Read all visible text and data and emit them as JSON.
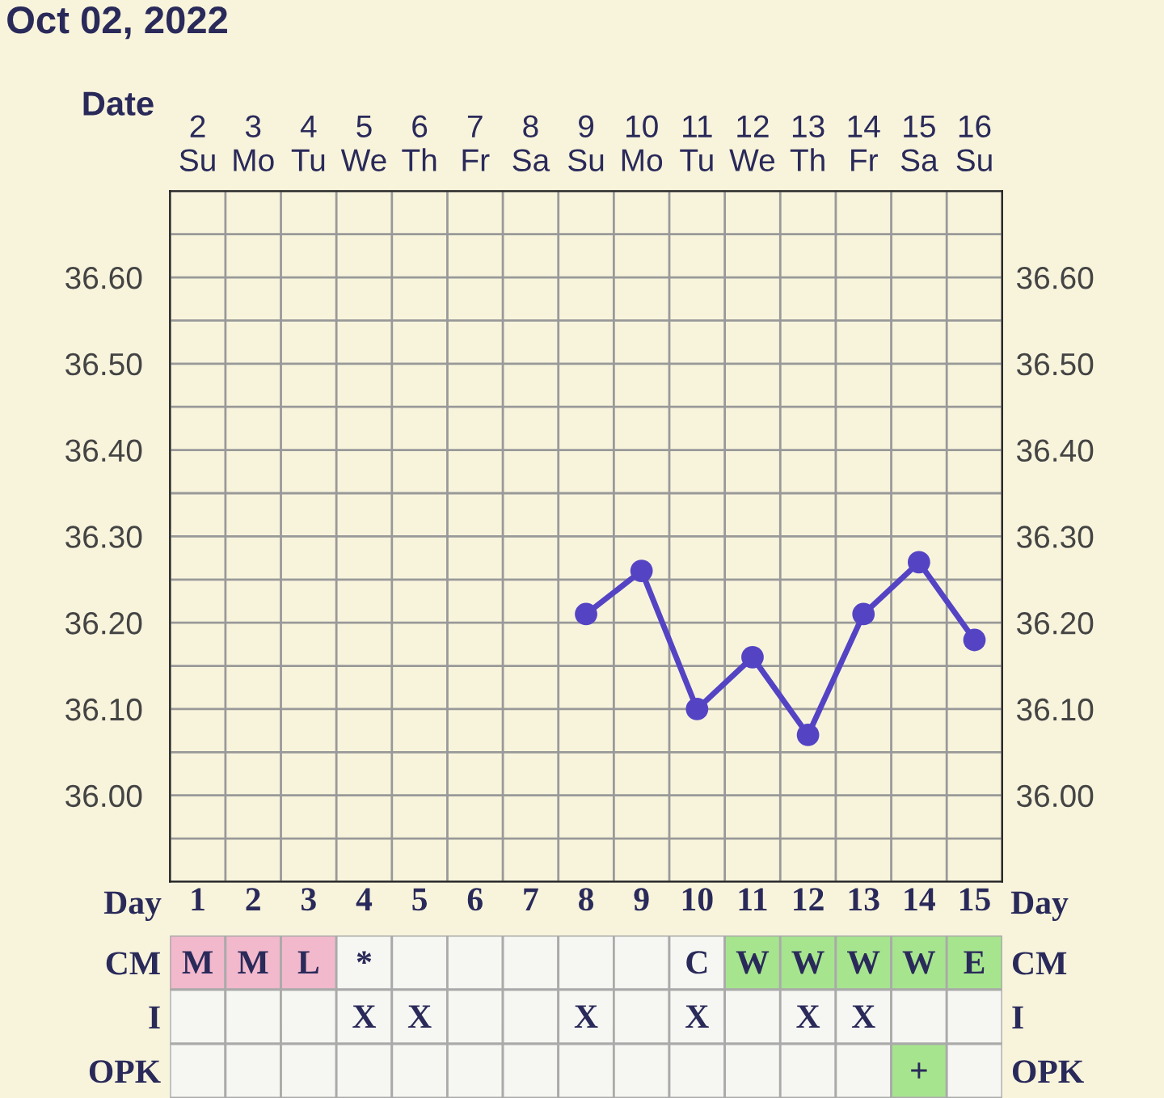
{
  "chart_data": [
    {
      "type": "line",
      "title": "Oct 02, 2022",
      "xlabel": "Date",
      "categories": [
        "2\nSu",
        "3\nMo",
        "4\nTu",
        "5\nWe",
        "6\nTh",
        "7\nFr",
        "8\nSa",
        "9\nSu",
        "10\nMo",
        "11\nTu",
        "12\nWe",
        "13\nTh",
        "14\nFr",
        "15\nSa",
        "16\nSu"
      ],
      "series": [
        {
          "color": "#5444c4",
          "values": [
            null,
            null,
            null,
            null,
            null,
            null,
            null,
            36.21,
            36.26,
            36.1,
            36.16,
            36.07,
            36.21,
            36.27,
            36.18
          ]
        }
      ],
      "marker": "circle",
      "line_style": "solid",
      "grid": true,
      "ylim": [
        35.9,
        36.7
      ],
      "yticks": [
        {
          "value": 35.9,
          "label": null
        },
        {
          "value": 35.95,
          "label": null
        },
        {
          "value": 36.0,
          "label": "36.00"
        },
        {
          "value": 36.05,
          "label": null
        },
        {
          "value": 36.1,
          "label": "36.10"
        },
        {
          "value": 36.15,
          "label": null
        },
        {
          "value": 36.2,
          "label": "36.20"
        },
        {
          "value": 36.25,
          "label": null
        },
        {
          "value": 36.3,
          "label": "36.30"
        },
        {
          "value": 36.35,
          "label": null
        },
        {
          "value": 36.4,
          "label": "36.40"
        },
        {
          "value": 36.45,
          "label": null
        },
        {
          "value": 36.5,
          "label": "36.50"
        },
        {
          "value": 36.55,
          "label": null
        },
        {
          "value": 36.6,
          "label": "36.60"
        },
        {
          "value": 36.65,
          "label": null
        }
      ],
      "y2lim": [
        35.9,
        36.7
      ],
      "y2ticks": [
        {
          "value": 35.9,
          "label": null
        },
        {
          "value": 35.95,
          "label": null
        },
        {
          "value": 36.0,
          "label": "36.00"
        },
        {
          "value": 36.05,
          "label": null
        },
        {
          "value": 36.1,
          "label": "36.10"
        },
        {
          "value": 36.15,
          "label": null
        },
        {
          "value": 36.2,
          "label": "36.20"
        },
        {
          "value": 36.25,
          "label": null
        },
        {
          "value": 36.3,
          "label": "36.30"
        },
        {
          "value": 36.35,
          "label": null
        },
        {
          "value": 36.4,
          "label": "36.40"
        },
        {
          "value": 36.45,
          "label": null
        },
        {
          "value": 36.5,
          "label": "36.50"
        },
        {
          "value": 36.55,
          "label": null
        },
        {
          "value": 36.6,
          "label": "36.60"
        },
        {
          "value": 36.65,
          "label": null
        }
      ]
    },
    {
      "type": "heatmap",
      "xlabel": "Day",
      "categories": [
        "1",
        "2",
        "3",
        "4",
        "5",
        "6",
        "7",
        "8",
        "9",
        "10",
        "11",
        "12",
        "13",
        "14",
        "15"
      ],
      "y_categories": [
        "CM",
        "I",
        "OPK"
      ],
      "y2_categories": [
        "CM",
        "I",
        "OPK"
      ],
      "cells": [
        [
          null,
          null,
          null,
          null,
          null,
          null,
          null,
          null,
          null,
          null,
          null,
          null,
          null,
          null,
          null
        ],
        [
          null,
          null,
          null,
          null,
          null,
          null,
          null,
          null,
          null,
          null,
          null,
          null,
          null,
          null,
          null
        ],
        [
          null,
          null,
          null,
          null,
          null,
          null,
          null,
          null,
          null,
          null,
          null,
          null,
          null,
          null,
          null
        ]
      ],
      "cell_labels": [
        [
          "M",
          "M",
          "L",
          "*",
          null,
          null,
          null,
          null,
          null,
          "C",
          "W",
          "W",
          "W",
          "W",
          "E"
        ],
        [
          null,
          null,
          null,
          "X",
          "X",
          null,
          null,
          "X",
          null,
          "X",
          null,
          "X",
          "X",
          null,
          null
        ],
        [
          null,
          null,
          null,
          null,
          null,
          null,
          null,
          null,
          null,
          null,
          null,
          null,
          null,
          "+",
          null
        ]
      ],
      "colors": [
        [
          "#f2b8cc",
          "#f2b8cc",
          "#f2b8cc",
          "#f6f6f2",
          "#f6f6f2",
          "#f6f6f2",
          "#f6f6f2",
          "#f6f6f2",
          "#f6f6f2",
          "#f6f6f2",
          "#a6e58e",
          "#a6e58e",
          "#a6e58e",
          "#a6e58e",
          "#a6e58e"
        ],
        [
          "#f6f6f2",
          "#f6f6f2",
          "#f6f6f2",
          "#f6f6f2",
          "#f6f6f2",
          "#f6f6f2",
          "#f6f6f2",
          "#f6f6f2",
          "#f6f6f2",
          "#f6f6f2",
          "#f6f6f2",
          "#f6f6f2",
          "#f6f6f2",
          "#f6f6f2",
          "#f6f6f2"
        ],
        [
          "#f6f6f2",
          "#f6f6f2",
          "#f6f6f2",
          "#f6f6f2",
          "#f6f6f2",
          "#f6f6f2",
          "#f6f6f2",
          "#f6f6f2",
          "#f6f6f2",
          "#f6f6f2",
          "#f6f6f2",
          "#f6f6f2",
          "#f6f6f2",
          "#a6e58e",
          "#f6f6f2"
        ]
      ]
    }
  ]
}
